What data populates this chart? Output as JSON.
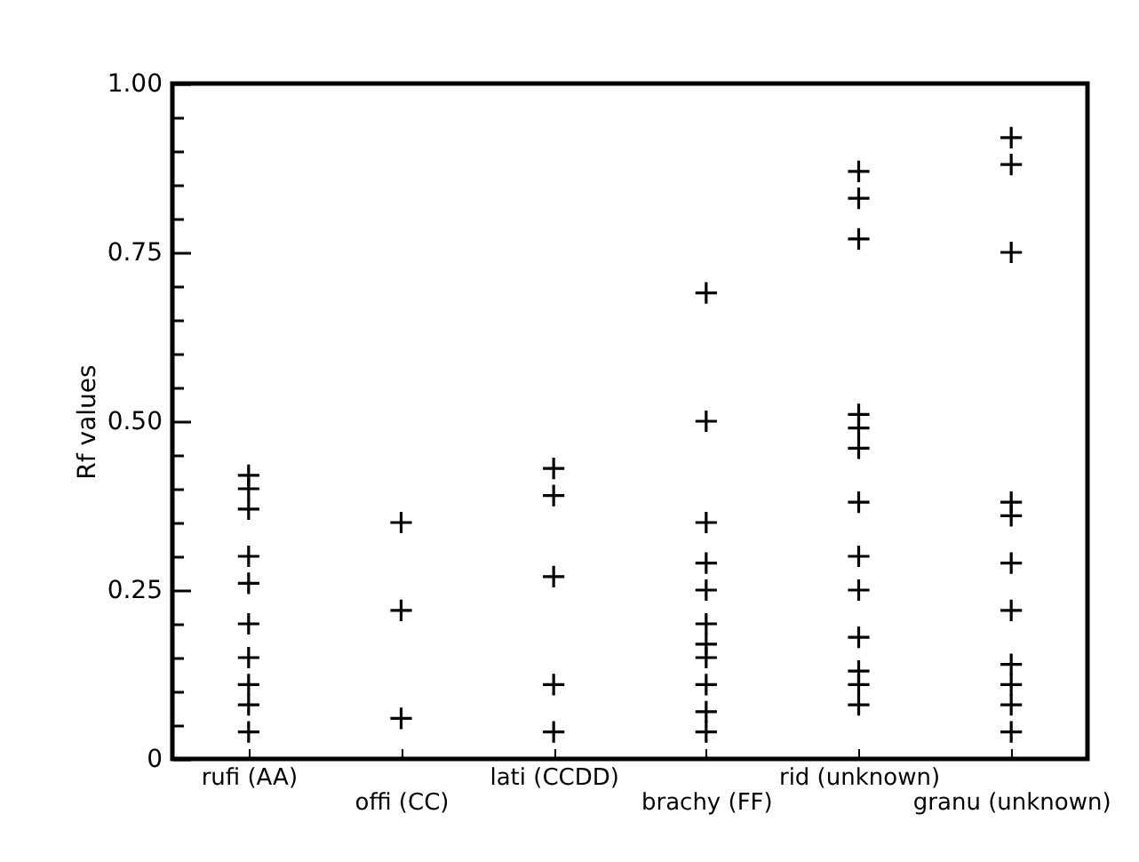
{
  "chart_data": {
    "type": "scatter",
    "ylabel": "Rf values",
    "categories": [
      "rufi (AA)",
      "offi (CC)",
      "lati (CCDD)",
      "brachy (FF)",
      "rid (unknown)",
      "granu (unknown)"
    ],
    "series": [
      {
        "color": "#000000",
        "x": [
          "rufi (AA)",
          "rufi (AA)",
          "rufi (AA)",
          "rufi (AA)",
          "rufi (AA)",
          "rufi (AA)",
          "rufi (AA)",
          "rufi (AA)",
          "rufi (AA)",
          "rufi (AA)",
          "offi (CC)",
          "offi (CC)",
          "offi (CC)",
          "lati (CCDD)",
          "lati (CCDD)",
          "lati (CCDD)",
          "lati (CCDD)",
          "lati (CCDD)",
          "brachy (FF)",
          "brachy (FF)",
          "brachy (FF)",
          "brachy (FF)",
          "brachy (FF)",
          "brachy (FF)",
          "brachy (FF)",
          "brachy (FF)",
          "brachy (FF)",
          "brachy (FF)",
          "brachy (FF)",
          "rid (unknown)",
          "rid (unknown)",
          "rid (unknown)",
          "rid (unknown)",
          "rid (unknown)",
          "rid (unknown)",
          "rid (unknown)",
          "rid (unknown)",
          "rid (unknown)",
          "rid (unknown)",
          "rid (unknown)",
          "rid (unknown)",
          "rid (unknown)",
          "granu (unknown)",
          "granu (unknown)",
          "granu (unknown)",
          "granu (unknown)",
          "granu (unknown)",
          "granu (unknown)",
          "granu (unknown)",
          "granu (unknown)",
          "granu (unknown)",
          "granu (unknown)",
          "granu (unknown)"
        ],
        "values": [
          0.42,
          0.4,
          0.37,
          0.3,
          0.26,
          0.2,
          0.15,
          0.11,
          0.08,
          0.04,
          0.35,
          0.22,
          0.06,
          0.43,
          0.39,
          0.27,
          0.11,
          0.04,
          0.69,
          0.5,
          0.35,
          0.29,
          0.25,
          0.2,
          0.17,
          0.15,
          0.11,
          0.07,
          0.04,
          0.87,
          0.83,
          0.77,
          0.51,
          0.49,
          0.46,
          0.38,
          0.3,
          0.25,
          0.18,
          0.13,
          0.11,
          0.08,
          0.92,
          0.88,
          0.75,
          0.38,
          0.36,
          0.29,
          0.22,
          0.14,
          0.11,
          0.08,
          0.04
        ]
      }
    ],
    "ylim": [
      0,
      1
    ],
    "yticks": [
      0,
      {
        "value": 0.05,
        "label": null
      },
      {
        "value": 0.1,
        "label": null
      },
      {
        "value": 0.15,
        "label": null
      },
      {
        "value": 0.2,
        "label": null
      },
      {
        "value": 0.25,
        "label": "0.25"
      },
      {
        "value": 0.3,
        "label": null
      },
      {
        "value": 0.35,
        "label": null
      },
      {
        "value": 0.4,
        "label": null
      },
      {
        "value": 0.45,
        "label": null
      },
      {
        "value": 0.5,
        "label": "0.50"
      },
      {
        "value": 0.55,
        "label": null
      },
      {
        "value": 0.6,
        "label": null
      },
      {
        "value": 0.65,
        "label": null
      },
      {
        "value": 0.7,
        "label": null
      },
      {
        "value": 0.75,
        "label": "0.75"
      },
      {
        "value": 0.8,
        "label": null
      },
      {
        "value": 0.85,
        "label": null
      },
      {
        "value": 0.9,
        "label": null
      },
      {
        "value": 0.95,
        "label": null
      },
      {
        "value": 1,
        "label": "1.00"
      }
    ],
    "marker": "cross",
    "grid": false,
    "legend": false
  }
}
